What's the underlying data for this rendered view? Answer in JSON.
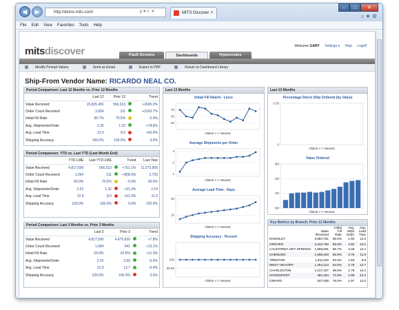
{
  "browser": {
    "address": "http://demo.mits.com/",
    "tab_title": "MITS Discover",
    "menu": [
      "File",
      "Edit",
      "View",
      "Favorites",
      "Tools",
      "Help"
    ],
    "address_controls": "ρ ▾ ⊂ ✕"
  },
  "app": {
    "logo_a": "mits",
    "logo_b": "discover",
    "welcome_prefix": "Welcome",
    "user": "GARY",
    "settings": "Settings ▾",
    "help": "Help",
    "logoff": "Logoff",
    "tabs": [
      "Flash Screens",
      "Dashboards",
      "Hyperscales"
    ],
    "active_tab": "Dashboards"
  },
  "toolbar": [
    "Modify Prompt Values",
    "Send as Email",
    "Export to PDF",
    "Return to Dashboard Library"
  ],
  "vendor": {
    "label": "Ship-From Vendor Name:",
    "name": "RICARDO NEAL CO."
  },
  "p1": {
    "title": "Period Comparison: Last 12 Months vs. Prior 12 Months",
    "cols": [
      "Last 12",
      "Prior 12",
      "Trend"
    ],
    "rows": [
      {
        "label": "Value Received",
        "a": "15,825,481",
        "b": "566,013",
        "t": "+2696.0%",
        "s": "g"
      },
      {
        "label": "Order Count Received",
        "a": "3,656",
        "b": "111",
        "t": "+3193.7%",
        "s": "g"
      },
      {
        "label": "Initial Fill Rate",
        "a": "66.7%",
        "b": "70.5%",
        "t": "-5.4%",
        "s": "y"
      },
      {
        "label": "Avg. Shipments/Order",
        "a": "2.35",
        "b": "1.32",
        "t": "+78.8%",
        "s": "g"
      },
      {
        "label": "Avg. Lead Time",
        "a": "12.0",
        "b": "8.0",
        "t": "+50.4%",
        "s": "r"
      },
      {
        "label": "Shipping Accuracy",
        "a": "100.0%",
        "b": "100.0%",
        "t": "0.0%",
        "s": "r"
      }
    ]
  },
  "p2": {
    "title": "Period Comparison: YTD vs. Last YTD (Last Month End)",
    "cols": [
      "YTD-LME",
      "Last YTD-LME",
      "Trend",
      "Last Year"
    ],
    "rows": [
      {
        "label": "Value Received",
        "a": "4,817,590",
        "b": "566,013",
        "t": "+751.1%",
        "c": "11,573,905",
        "s": "g"
      },
      {
        "label": "Order Count Received",
        "a": "1,064",
        "b": "111",
        "t": "+858.6%",
        "c": "2,703",
        "s": "g"
      },
      {
        "label": "Initial Fill Rate",
        "a": "69.9%",
        "b": "70.5%",
        "t": "-0.9%",
        "c": "65.6%",
        "s": "y"
      },
      {
        "label": "Avg. Shipments/Order",
        "a": "2.52",
        "b": "1.32",
        "t": "+91.3%",
        "c": "2.24",
        "s": "r"
      },
      {
        "label": "Avg. Lead Time",
        "a": "12.9",
        "b": "8.0",
        "t": "+61.0%",
        "c": "11.5",
        "s": "r"
      },
      {
        "label": "Shipping Accuracy",
        "a": "100.0%",
        "b": "100.0%",
        "t": "0.0%",
        "c": "100.0%",
        "s": "r"
      }
    ]
  },
  "p3": {
    "title": "Period Comparison: Last 3 Months vs. Prior 3 Months",
    "cols": [
      "Last 3",
      "Prior 3",
      "Trend"
    ],
    "rows": [
      {
        "label": "Value Received",
        "a": "4,817,590",
        "b": "4,470,620",
        "t": "+7.8%",
        "s": "g"
      },
      {
        "label": "Order Count Received",
        "a": "1,064",
        "b": "941",
        "t": "+13.1%",
        "s": "g"
      },
      {
        "label": "Initial Fill Rate",
        "a": "69.9%",
        "b": "62.8%",
        "t": "+11.3%",
        "s": "g"
      },
      {
        "label": "Avg. Shipments/Order",
        "a": "2.52",
        "b": "2.69",
        "t": "-6.5%",
        "s": "g"
      },
      {
        "label": "Avg. Lead Time",
        "a": "12.9",
        "b": "13.7",
        "t": "-6.4%",
        "s": "g"
      },
      {
        "label": "Shipping Accuracy",
        "a": "100.0%",
        "b": "100.0%",
        "t": "0.0%",
        "s": "r"
      }
    ]
  },
  "mid": {
    "title": "Last 13 Months",
    "xlabel": "Oldest <-> Newest"
  },
  "right": {
    "title": "Last 13 Months",
    "xlabel": "Oldest <-> Newest"
  },
  "chart_data": [
    {
      "type": "line",
      "title": "Initial Fill Rate% - Lines",
      "xlabel": "Oldest <-> Newest",
      "ylim": [
        55,
        75
      ],
      "yticks": [
        "70",
        "65",
        "60"
      ],
      "values": [
        70,
        65,
        64,
        72,
        71,
        67,
        66,
        63,
        61,
        64,
        62,
        71,
        69
      ]
    },
    {
      "type": "line",
      "title": "Average Shipments per Order",
      "xlabel": "Oldest <-> Newest",
      "ylim": [
        0.8,
        3.2
      ],
      "yticks": [
        "3",
        "2",
        "1"
      ],
      "values": [
        1.2,
        2.0,
        2.2,
        2.3,
        2.4,
        2.4,
        2.4,
        2.4,
        2.4,
        2.5,
        2.5,
        2.6,
        2.9
      ]
    },
    {
      "type": "line",
      "title": "Average Lead Time - Days",
      "xlabel": "Oldest <-> Newest",
      "ylim": [
        5,
        22
      ],
      "yticks": [
        "20",
        "10"
      ],
      "values": [
        7.5,
        9,
        10,
        11,
        11.5,
        12,
        12.5,
        13,
        13.5,
        14,
        15,
        16,
        18
      ]
    },
    {
      "type": "line",
      "title": "Shipping Accuracy - Percent",
      "xlabel": "Oldest <-> Newest",
      "ylim": [
        99.9,
        100.1
      ],
      "yticks": [
        "100",
        "99.95"
      ],
      "values": [
        100,
        100,
        100,
        100,
        100,
        100,
        100,
        100,
        100,
        100,
        100,
        100,
        100
      ]
    },
    {
      "type": "line",
      "title": "Percentage Direct Ship Ordered (by Value)",
      "xlabel": "Oldest <-> Newest",
      "ylim": [
        0,
        0.05
      ],
      "yticks": [
        "0.05",
        "0"
      ],
      "values": []
    },
    {
      "type": "bar",
      "title": "Value Ordered",
      "xlabel": "Oldest <-> Newest",
      "ylim": [
        0,
        3
      ],
      "yticks": [
        "3M",
        "2M",
        "1M",
        "0M"
      ],
      "values": [
        0.55,
        1.0,
        1.05,
        1.05,
        1.1,
        1.05,
        1.1,
        1.2,
        1.3,
        1.45,
        1.75,
        1.85,
        1.9
      ]
    }
  ],
  "branch": {
    "title": "Key Metrics by Branch: Prior 12 Months",
    "headers": [
      "Value Received",
      "Initial Fill Rate",
      "Avg. Ship/ Order",
      "Avg. Lead Time"
    ],
    "rows": [
      {
        "b": "KINGSLEY",
        "v": "3,684,751",
        "f": "65.0%",
        "s": "2.93",
        "l": "11.6"
      },
      {
        "b": "GROVER",
        "v": "3,242,762",
        "f": "55.9%",
        "s": "4.92",
        "l": "12.2"
      },
      {
        "b": "CALIFORNIA HOT SPRINGS",
        "v": "1,658,591",
        "f": "66.7%",
        "s": "3.26",
        "l": "12.4"
      },
      {
        "b": "CHEMUNG",
        "v": "1,568,183",
        "f": "66.9%",
        "s": "3.78",
        "l": "11.9"
      },
      {
        "b": "TRENTON",
        "v": "1,411,022",
        "f": "82.3%",
        "s": "1.63",
        "l": "8.8"
      },
      {
        "b": "WEST HICKORY",
        "v": "1,254,124",
        "f": "64.5%",
        "s": "2.78",
        "l": "12.7"
      },
      {
        "b": "CHARLESTON",
        "v": "1,017,407",
        "f": "68.6%",
        "s": "2.76",
        "l": "12.4"
      },
      {
        "b": "HOODSPORT",
        "v": "481,334",
        "f": "72.9%",
        "s": "1.89",
        "l": "13.4"
      },
      {
        "b": "GIRARD",
        "v": "347,838",
        "f": "76.9%",
        "s": "1.97",
        "l": "11.5"
      }
    ]
  }
}
